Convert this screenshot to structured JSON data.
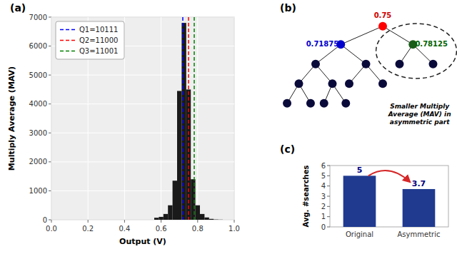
{
  "chart_data": [
    {
      "type": "histogram",
      "title": "(a)",
      "xlabel": "Output (V)",
      "ylabel": "Multiply Average (MAV)",
      "bins": [
        0.5625,
        0.5875,
        0.6125,
        0.6375,
        0.6625,
        0.6875,
        0.7125,
        0.7375,
        0.7625,
        0.7875,
        0.8125,
        0.8375,
        0.8625,
        0.8875,
        0.9125,
        0.9375
      ],
      "values": [
        70,
        100,
        200,
        500,
        1350,
        4450,
        6800,
        4500,
        1400,
        500,
        200,
        80,
        30,
        10,
        5
      ],
      "color": "#1a1a1a",
      "series": [
        {
          "name": "Q1=10111",
          "color": "#0000FF",
          "type": "vline",
          "line_style": "dashed",
          "values": [
            0.71875
          ]
        },
        {
          "name": "Q2=11000",
          "color": "#FF0000",
          "type": "vline",
          "line_style": "dashed",
          "values": [
            0.75
          ]
        },
        {
          "name": "Q3=11001",
          "color": "#008000",
          "type": "vline",
          "line_style": "dashed",
          "values": [
            0.78125
          ]
        }
      ],
      "xlim": [
        0.0,
        1.0
      ],
      "ylim": [
        0,
        7000
      ],
      "xticks": [
        {
          "value": 0,
          "label": "0.0"
        },
        0.2,
        0.4,
        0.6,
        0.8,
        {
          "value": 1,
          "label": "1.0"
        }
      ],
      "yticks": [
        0,
        1000,
        2000,
        3000,
        4000,
        5000,
        6000,
        7000
      ],
      "grid": true,
      "legend": "upper left"
    },
    {
      "type": "tree",
      "title": "(b)",
      "values": [
        0.75,
        0.71875,
        0.78125
      ],
      "colors": [
        "#FF0000",
        "#0000CD",
        "#1a5c1a"
      ],
      "color": "#0a0a3a",
      "data_labels": true,
      "annotations": [
        "Smaller Multiply\nAverage (MAV) in\nasymmetric part"
      ]
    },
    {
      "type": "bar",
      "title": "(c)",
      "categories": [
        "Original",
        "Asymmetric"
      ],
      "values": [
        5,
        3.7
      ],
      "color": "#1F3A8F",
      "ylabel": "Avg. #searches",
      "ylim": [
        0,
        6
      ],
      "yticks": [
        0,
        1,
        2,
        3,
        4,
        5,
        6
      ],
      "data_labels": true,
      "grid": false
    }
  ]
}
